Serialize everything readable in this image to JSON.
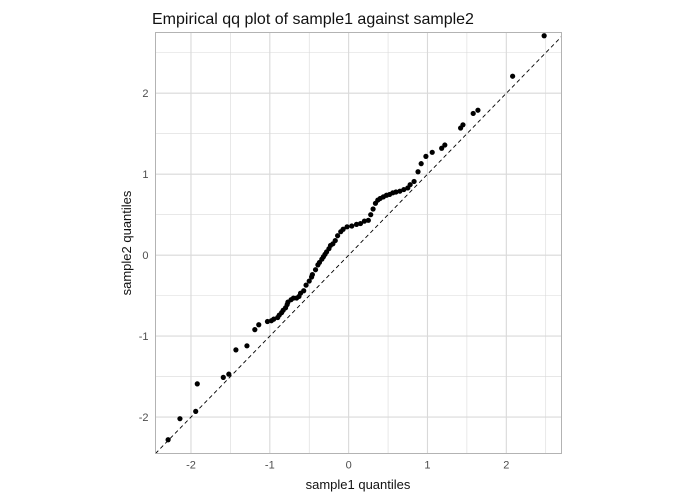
{
  "chart_data": {
    "type": "scatter",
    "title": "Empirical qq plot of sample1 against sample2",
    "xlabel": "sample1 quantiles",
    "ylabel": "sample2 quantiles",
    "xlim": [
      -2.45,
      2.7
    ],
    "ylim": [
      -2.45,
      2.75
    ],
    "x_ticks": [
      -2,
      -1,
      0,
      1,
      2
    ],
    "x_tick_labels": [
      "-2",
      "-1",
      "0",
      "1",
      "2"
    ],
    "y_ticks": [
      -2,
      -1,
      0,
      1,
      2
    ],
    "y_tick_labels": [
      "-2",
      "-1",
      "0",
      "1",
      "2"
    ],
    "grid": true,
    "reference_line": {
      "slope": 1,
      "intercept": 0,
      "style": "dashed"
    },
    "colors": {
      "points": "#000000",
      "grid": "#d9d9d9",
      "panel_border": "#b3b3b3",
      "background": "#ffffff"
    },
    "series": [
      {
        "x": [
          -2.29,
          -2.14,
          -1.94,
          -1.92,
          -1.59,
          -1.52,
          -1.43,
          -1.29,
          -1.19,
          -1.14,
          -1.03,
          -0.98,
          -0.95,
          -0.9,
          -0.88,
          -0.85,
          -0.83,
          -0.8,
          -0.78,
          -0.77,
          -0.73,
          -0.7,
          -0.66,
          -0.63,
          -0.61,
          -0.57,
          -0.54,
          -0.5,
          -0.47,
          -0.46,
          -0.42,
          -0.39,
          -0.37,
          -0.34,
          -0.32,
          -0.3,
          -0.28,
          -0.25,
          -0.23,
          -0.2,
          -0.17,
          -0.14,
          -0.1,
          -0.07,
          -0.02,
          0.04,
          0.1,
          0.15,
          0.2,
          0.25,
          0.28,
          0.31,
          0.34,
          0.37,
          0.4,
          0.44,
          0.48,
          0.52,
          0.56,
          0.6,
          0.65,
          0.7,
          0.75,
          0.78,
          0.83,
          0.88,
          0.92,
          0.98,
          1.06,
          1.18,
          1.22,
          1.42,
          1.45,
          1.58,
          1.64,
          2.08,
          2.48
        ],
        "y": [
          -2.28,
          -2.02,
          -1.93,
          -1.59,
          -1.51,
          -1.47,
          -1.17,
          -1.12,
          -0.92,
          -0.86,
          -0.82,
          -0.81,
          -0.79,
          -0.77,
          -0.74,
          -0.71,
          -0.68,
          -0.65,
          -0.61,
          -0.58,
          -0.55,
          -0.53,
          -0.53,
          -0.51,
          -0.47,
          -0.44,
          -0.37,
          -0.32,
          -0.27,
          -0.24,
          -0.18,
          -0.12,
          -0.09,
          -0.05,
          -0.02,
          0.01,
          0.04,
          0.08,
          0.12,
          0.14,
          0.18,
          0.24,
          0.29,
          0.32,
          0.35,
          0.36,
          0.38,
          0.39,
          0.42,
          0.43,
          0.5,
          0.57,
          0.64,
          0.68,
          0.7,
          0.72,
          0.74,
          0.75,
          0.77,
          0.78,
          0.79,
          0.81,
          0.83,
          0.87,
          0.91,
          1.03,
          1.13,
          1.22,
          1.27,
          1.32,
          1.36,
          1.57,
          1.61,
          1.75,
          1.79,
          2.21,
          2.71
        ]
      }
    ]
  }
}
